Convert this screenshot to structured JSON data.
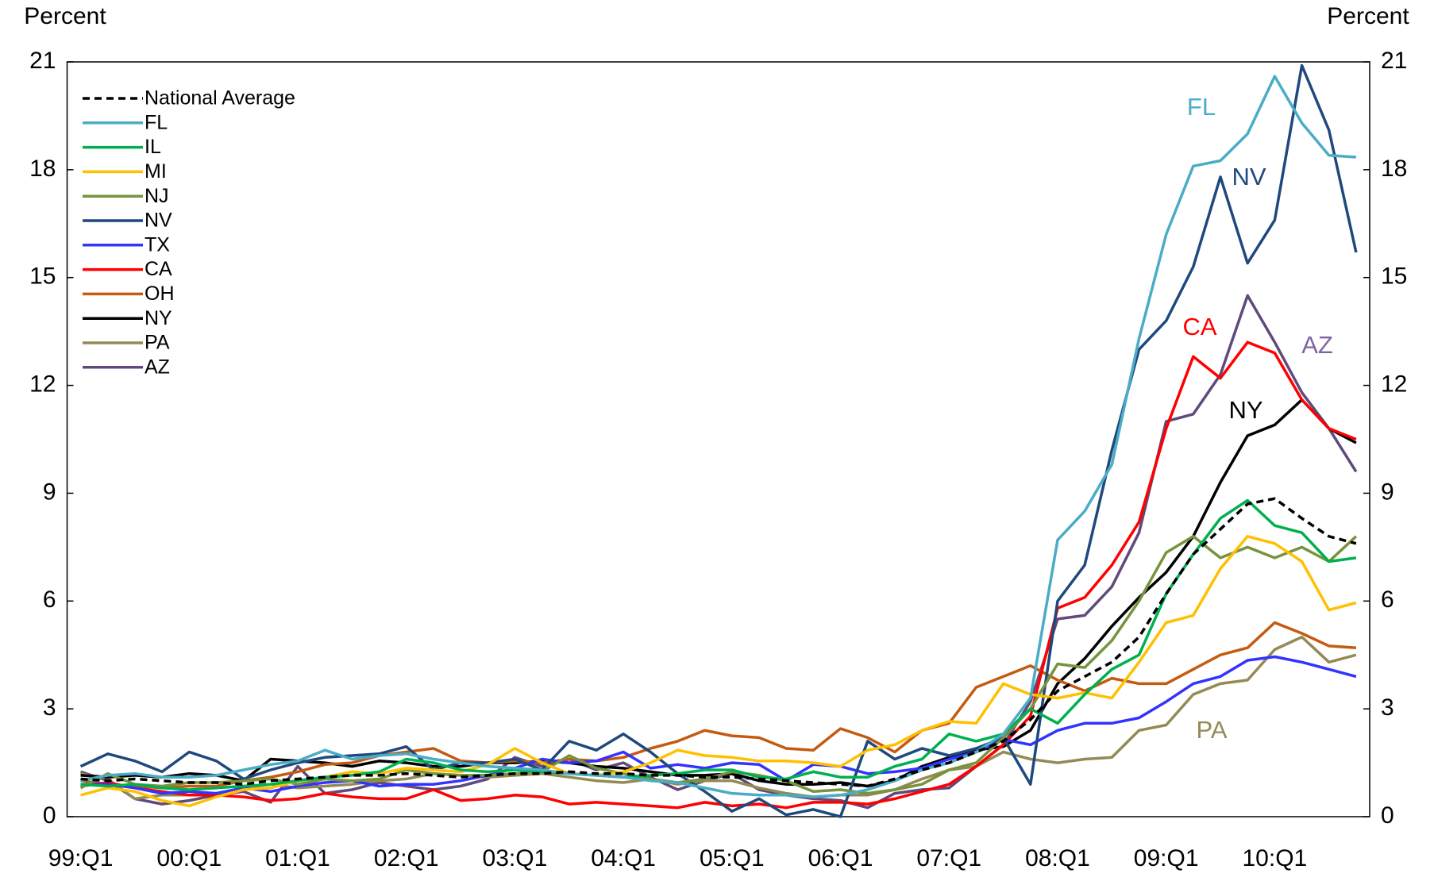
{
  "chart_data": {
    "type": "line",
    "y_label": "Percent",
    "y2_label": "Percent",
    "categories": [
      "99:Q1",
      null,
      null,
      null,
      "00:Q1",
      null,
      null,
      null,
      "01:Q1",
      null,
      null,
      null,
      "02:Q1",
      null,
      null,
      null,
      "03:Q1",
      null,
      null,
      null,
      "04:Q1",
      null,
      null,
      null,
      "05:Q1",
      null,
      null,
      null,
      "06:Q1",
      null,
      null,
      null,
      "07:Q1",
      null,
      null,
      null,
      "08:Q1",
      null,
      null,
      null,
      "09:Q1",
      null,
      null,
      null,
      "10:Q1",
      null,
      null,
      null
    ],
    "ylim": [
      0,
      21
    ],
    "yticks": [
      0,
      3,
      6,
      9,
      12,
      15,
      18,
      21
    ],
    "y2lim": [
      0,
      21
    ],
    "y2ticks": [
      0,
      3,
      6,
      9,
      12,
      15,
      18,
      21
    ],
    "grid": false,
    "legend": "top-left",
    "series": [
      {
        "name": "National Average",
        "color": "#000000",
        "line_style": "dashed",
        "values": [
          1.05,
          1.0,
          1.05,
          1.0,
          0.95,
          0.95,
          0.9,
          1.0,
          1.05,
          1.1,
          1.15,
          1.15,
          1.2,
          1.15,
          1.1,
          1.15,
          1.2,
          1.2,
          1.25,
          1.2,
          1.2,
          1.15,
          1.15,
          1.1,
          1.1,
          1.05,
          1.0,
          0.95,
          0.9,
          0.85,
          1.05,
          1.3,
          1.5,
          1.8,
          2.1,
          2.7,
          3.5,
          3.9,
          4.3,
          5.0,
          6.2,
          7.3,
          8.0,
          8.7,
          8.85,
          8.3,
          7.8,
          7.6
        ]
      },
      {
        "name": "FL",
        "color": "#4bacc6",
        "values": [
          1.0,
          1.15,
          1.2,
          1.1,
          1.1,
          1.15,
          1.3,
          1.45,
          1.55,
          1.85,
          1.6,
          1.7,
          1.75,
          1.6,
          1.5,
          1.4,
          1.35,
          1.3,
          1.2,
          1.15,
          1.1,
          1.0,
          0.95,
          0.8,
          0.65,
          0.6,
          0.6,
          0.55,
          0.6,
          0.75,
          1.0,
          1.3,
          1.5,
          1.8,
          2.3,
          3.3,
          7.7,
          8.5,
          9.8,
          13.3,
          16.2,
          18.1,
          18.25,
          19.0,
          20.6,
          19.3,
          18.4,
          18.35
        ]
      },
      {
        "name": "IL",
        "color": "#00b050",
        "values": [
          0.9,
          0.85,
          0.9,
          0.8,
          0.75,
          0.8,
          0.85,
          0.9,
          1.0,
          1.1,
          1.15,
          1.25,
          1.6,
          1.5,
          1.3,
          1.25,
          1.3,
          1.25,
          1.2,
          1.15,
          1.1,
          1.15,
          1.2,
          1.3,
          1.3,
          1.1,
          1.05,
          1.25,
          1.1,
          1.1,
          1.4,
          1.6,
          2.3,
          2.1,
          2.3,
          3.0,
          2.6,
          3.4,
          4.1,
          4.5,
          6.2,
          7.3,
          8.3,
          8.8,
          8.1,
          7.9,
          7.1,
          7.2
        ]
      },
      {
        "name": "MI",
        "color": "#ffc000",
        "values": [
          0.6,
          0.8,
          0.7,
          0.45,
          0.3,
          0.55,
          0.75,
          0.8,
          1.0,
          1.1,
          1.25,
          1.2,
          1.35,
          1.3,
          1.25,
          1.45,
          1.9,
          1.5,
          1.2,
          1.15,
          1.25,
          1.5,
          1.85,
          1.7,
          1.65,
          1.55,
          1.55,
          1.5,
          1.4,
          1.85,
          2.0,
          2.4,
          2.65,
          2.6,
          3.7,
          3.4,
          3.3,
          3.45,
          3.3,
          4.3,
          5.4,
          5.6,
          6.9,
          7.8,
          7.6,
          7.1,
          5.75,
          5.95
        ]
      },
      {
        "name": "NJ",
        "color": "#77933c",
        "values": [
          0.8,
          1.2,
          0.9,
          0.85,
          0.95,
          0.95,
          1.0,
          1.05,
          0.9,
          1.05,
          1.0,
          1.05,
          1.3,
          1.2,
          1.15,
          1.15,
          1.2,
          1.25,
          1.7,
          1.35,
          1.2,
          1.05,
          0.95,
          1.05,
          1.25,
          1.15,
          1.0,
          0.7,
          0.75,
          0.65,
          0.75,
          0.9,
          1.3,
          1.5,
          2.2,
          3.0,
          4.25,
          4.15,
          4.9,
          6.0,
          7.35,
          7.8,
          7.2,
          7.5,
          7.2,
          7.5,
          7.1,
          7.8
        ]
      },
      {
        "name": "NV",
        "color": "#1f497d",
        "values": [
          1.4,
          1.75,
          1.55,
          1.25,
          1.8,
          1.55,
          1.05,
          1.3,
          1.5,
          1.65,
          1.7,
          1.75,
          1.95,
          1.3,
          1.5,
          1.5,
          1.6,
          1.3,
          2.1,
          1.85,
          2.3,
          1.8,
          1.2,
          0.7,
          0.15,
          0.5,
          0.05,
          0.2,
          0.0,
          2.1,
          1.6,
          1.9,
          1.7,
          1.9,
          2.2,
          0.9,
          6.0,
          7.0,
          10.2,
          13.0,
          13.8,
          15.3,
          17.8,
          15.4,
          16.6,
          20.9,
          19.1,
          15.7
        ]
      },
      {
        "name": "TX",
        "color": "#3333ff",
        "values": [
          0.9,
          0.9,
          0.8,
          0.65,
          0.7,
          0.65,
          0.8,
          0.7,
          0.85,
          0.95,
          1.0,
          0.85,
          0.9,
          0.9,
          1.0,
          1.15,
          1.35,
          1.6,
          1.5,
          1.55,
          1.8,
          1.35,
          1.45,
          1.35,
          1.5,
          1.45,
          1.0,
          1.45,
          1.4,
          1.2,
          1.25,
          1.35,
          1.6,
          1.8,
          2.15,
          2.0,
          2.4,
          2.6,
          2.6,
          2.75,
          3.2,
          3.7,
          3.9,
          4.35,
          4.45,
          4.3,
          4.1,
          3.9
        ]
      },
      {
        "name": "CA",
        "color": "#ff0000",
        "values": [
          0.85,
          0.95,
          0.8,
          0.7,
          0.6,
          0.6,
          0.55,
          0.45,
          0.5,
          0.65,
          0.55,
          0.5,
          0.5,
          0.75,
          0.45,
          0.5,
          0.6,
          0.55,
          0.35,
          0.4,
          0.35,
          0.3,
          0.25,
          0.4,
          0.3,
          0.35,
          0.25,
          0.4,
          0.4,
          0.35,
          0.5,
          0.7,
          0.9,
          1.4,
          2.0,
          2.8,
          5.8,
          6.1,
          7.0,
          8.2,
          10.8,
          12.8,
          12.2,
          13.2,
          12.9,
          11.6,
          10.8,
          10.5
        ]
      },
      {
        "name": "OH",
        "color": "#c55a11",
        "values": [
          1.0,
          0.9,
          0.85,
          0.8,
          0.85,
          0.85,
          1.0,
          1.1,
          1.25,
          1.45,
          1.5,
          1.7,
          1.8,
          1.9,
          1.55,
          1.5,
          1.55,
          1.5,
          1.6,
          1.55,
          1.65,
          1.9,
          2.1,
          2.4,
          2.25,
          2.2,
          1.9,
          1.85,
          2.45,
          2.2,
          1.8,
          2.4,
          2.6,
          3.6,
          3.9,
          4.2,
          3.8,
          3.5,
          3.85,
          3.7,
          3.7,
          4.1,
          4.5,
          4.7,
          5.4,
          5.1,
          4.75,
          4.7
        ]
      },
      {
        "name": "NY",
        "color": "#000000",
        "values": [
          1.15,
          1.1,
          1.15,
          1.1,
          1.2,
          1.15,
          1.0,
          1.6,
          1.55,
          1.5,
          1.4,
          1.55,
          1.5,
          1.4,
          1.4,
          1.5,
          1.5,
          1.55,
          1.5,
          1.4,
          1.35,
          1.25,
          1.15,
          1.15,
          1.2,
          1.0,
          0.9,
          0.9,
          0.95,
          0.85,
          1.0,
          1.4,
          1.65,
          1.85,
          1.95,
          2.4,
          3.7,
          4.4,
          5.3,
          6.1,
          6.8,
          7.8,
          9.3,
          10.6,
          10.9,
          11.6,
          10.8,
          10.4
        ]
      },
      {
        "name": "PA",
        "color": "#948a54",
        "values": [
          1.2,
          1.05,
          0.5,
          0.6,
          0.6,
          0.65,
          0.8,
          0.9,
          0.8,
          0.85,
          0.9,
          1.0,
          1.05,
          1.2,
          1.15,
          1.1,
          1.15,
          1.2,
          1.1,
          1.0,
          0.95,
          1.05,
          0.9,
          1.0,
          1.0,
          0.8,
          0.65,
          0.55,
          0.6,
          0.6,
          0.75,
          1.05,
          1.3,
          1.4,
          1.8,
          1.6,
          1.5,
          1.6,
          1.65,
          2.4,
          2.55,
          3.4,
          3.7,
          3.8,
          4.65,
          5.0,
          4.3,
          4.5
        ]
      },
      {
        "name": "AZ",
        "color": "#604a7b",
        "values": [
          1.25,
          1.0,
          0.5,
          0.35,
          0.45,
          0.6,
          0.7,
          0.4,
          1.4,
          0.65,
          0.75,
          0.95,
          0.85,
          0.75,
          0.85,
          1.05,
          1.65,
          1.4,
          1.6,
          1.3,
          1.5,
          1.1,
          0.75,
          1.0,
          1.2,
          0.75,
          0.6,
          0.5,
          0.45,
          0.25,
          0.65,
          0.75,
          0.8,
          1.4,
          2.0,
          3.2,
          5.5,
          5.6,
          6.4,
          7.9,
          11.0,
          11.2,
          12.3,
          14.5,
          13.2,
          11.8,
          10.8,
          9.6
        ]
      }
    ],
    "annotations": [
      "FL",
      "NV",
      "CA",
      "AZ",
      "NY",
      "PA"
    ]
  }
}
